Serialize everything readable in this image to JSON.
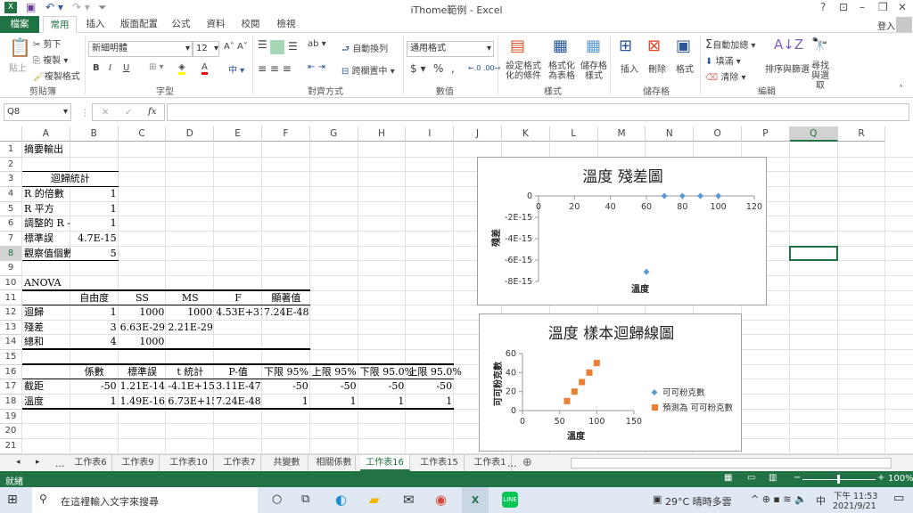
{
  "window": {
    "title": "iThome範例 - Excel",
    "help": "?",
    "signin": "登入"
  },
  "quick_access": {
    "save": "save-icon",
    "undo": "undo-icon",
    "redo": "redo-icon"
  },
  "tabs": [
    {
      "label": "檔案"
    },
    {
      "label": "常用",
      "active": true
    },
    {
      "label": "插入"
    },
    {
      "label": "版面配置"
    },
    {
      "label": "公式"
    },
    {
      "label": "資料"
    },
    {
      "label": "校閱"
    },
    {
      "label": "檢視"
    }
  ],
  "ribbon": {
    "clipboard": {
      "paste": "貼上",
      "cut": "剪下",
      "copy": "複製",
      "format_painter": "複製格式",
      "group": "剪貼簿"
    },
    "font": {
      "name": "新細明體",
      "size": "12",
      "bold": "B",
      "italic": "I",
      "underline": "U",
      "group": "字型"
    },
    "alignment": {
      "wrap": "自動換列",
      "merge": "跨欄置中",
      "group": "對齊方式"
    },
    "number": {
      "format": "通用格式",
      "currency": "$",
      "percent": "%",
      "comma": ",",
      "group": "數值"
    },
    "styles": {
      "conditional": "設定格式化的條件",
      "table": "格式化為表格",
      "cell": "儲存格樣式",
      "group": "樣式"
    },
    "cells": {
      "insert": "插入",
      "delete": "刪除",
      "format": "格式",
      "group": "儲存格"
    },
    "editing": {
      "autosum": "自動加總",
      "fill": "填滿",
      "clear": "清除",
      "sort": "排序與篩選",
      "find": "尋找與選取",
      "group": "編輯"
    }
  },
  "formula_bar": {
    "name_box": "Q8",
    "fx": "fx",
    "value": ""
  },
  "columns": [
    "A",
    "B",
    "C",
    "D",
    "E",
    "F",
    "G",
    "H",
    "I",
    "J",
    "K",
    "L",
    "M",
    "N",
    "O",
    "P",
    "Q",
    "R"
  ],
  "selected_cell": {
    "col": "Q",
    "row": 8
  },
  "sheet": {
    "cells": [
      [
        1,
        0,
        "摘要輸出",
        "l"
      ],
      [
        3,
        0,
        "迴歸統計",
        "span2"
      ],
      [
        4,
        0,
        "R 的倍數",
        "l"
      ],
      [
        4,
        1,
        "1",
        "r"
      ],
      [
        5,
        0,
        "R 平方",
        "l"
      ],
      [
        5,
        1,
        "1",
        "r"
      ],
      [
        6,
        0,
        "調整的 R -",
        "l"
      ],
      [
        6,
        1,
        "1",
        "r"
      ],
      [
        7,
        0,
        "標準誤",
        "l"
      ],
      [
        7,
        1,
        "4.7E-15",
        "r"
      ],
      [
        8,
        0,
        "觀察值個數",
        "l"
      ],
      [
        8,
        1,
        "5",
        "r"
      ],
      [
        10,
        0,
        "ANOVA",
        "l"
      ],
      [
        11,
        1,
        "自由度",
        "c"
      ],
      [
        11,
        2,
        "SS",
        "c"
      ],
      [
        11,
        3,
        "MS",
        "c"
      ],
      [
        11,
        4,
        "F",
        "c"
      ],
      [
        11,
        5,
        "顯著值",
        "c"
      ],
      [
        12,
        0,
        "迴歸",
        "l"
      ],
      [
        12,
        1,
        "1",
        "r"
      ],
      [
        12,
        2,
        "1000",
        "r"
      ],
      [
        12,
        3,
        "1000",
        "r"
      ],
      [
        12,
        4,
        "4.53E+31",
        "r"
      ],
      [
        12,
        5,
        "7.24E-48",
        "r"
      ],
      [
        13,
        0,
        "殘差",
        "l"
      ],
      [
        13,
        1,
        "3",
        "r"
      ],
      [
        13,
        2,
        "6.63E-29",
        "r"
      ],
      [
        13,
        3,
        "2.21E-29",
        "r"
      ],
      [
        14,
        0,
        "總和",
        "l"
      ],
      [
        14,
        1,
        "4",
        "r"
      ],
      [
        14,
        2,
        "1000",
        "r"
      ],
      [
        16,
        1,
        "係數",
        "c"
      ],
      [
        16,
        2,
        "標準誤",
        "c"
      ],
      [
        16,
        3,
        "t 統計",
        "c"
      ],
      [
        16,
        4,
        "P-值",
        "c"
      ],
      [
        16,
        5,
        "下限 95%",
        "c"
      ],
      [
        16,
        6,
        "上限 95%",
        "c"
      ],
      [
        16,
        7,
        "下限 95.0%",
        "c"
      ],
      [
        16,
        8,
        "上限 95.0%",
        "c"
      ],
      [
        17,
        0,
        "截距",
        "l"
      ],
      [
        17,
        1,
        "-50",
        "r"
      ],
      [
        17,
        2,
        "1.21E-14",
        "r"
      ],
      [
        17,
        3,
        "-4.1E+15",
        "r"
      ],
      [
        17,
        4,
        "3.11E-47",
        "r"
      ],
      [
        17,
        5,
        "-50",
        "r"
      ],
      [
        17,
        6,
        "-50",
        "r"
      ],
      [
        17,
        7,
        "-50",
        "r"
      ],
      [
        17,
        8,
        "-50",
        "r"
      ],
      [
        18,
        0,
        "溫度",
        "l"
      ],
      [
        18,
        1,
        "1",
        "r"
      ],
      [
        18,
        2,
        "1.49E-16",
        "r"
      ],
      [
        18,
        3,
        "6.73E+15",
        "r"
      ],
      [
        18,
        4,
        "7.24E-48",
        "r"
      ],
      [
        18,
        5,
        "1",
        "r"
      ],
      [
        18,
        6,
        "1",
        "r"
      ],
      [
        18,
        7,
        "1",
        "r"
      ],
      [
        18,
        8,
        "1",
        "r"
      ]
    ]
  },
  "chart_data": [
    {
      "type": "scatter",
      "title": "溫度 殘差圖",
      "xlabel": "溫度",
      "ylabel": "殘差",
      "xlim": [
        0,
        120
      ],
      "xticks": [
        "0",
        "20",
        "40",
        "60",
        "80",
        "100",
        "120"
      ],
      "ylim": [
        -8e-15,
        0
      ],
      "yticks": [
        "0",
        "-2E-15",
        "-4E-15",
        "-6E-15",
        "-8E-15"
      ],
      "series": [
        {
          "x": [
            60,
            70,
            80,
            90,
            100
          ],
          "y": [
            -7.1e-15,
            0,
            0,
            0,
            0
          ],
          "color": "#5b9bd5",
          "marker": "diamond"
        }
      ],
      "grid": false,
      "legend": "none"
    },
    {
      "type": "scatter",
      "title": "溫度 樣本迴歸線圖",
      "xlabel": "溫度",
      "ylabel": "可可粉克數",
      "xlim": [
        0,
        150
      ],
      "xticks": [
        "0",
        "50",
        "100",
        "150"
      ],
      "ylim": [
        0,
        60
      ],
      "yticks": [
        "60",
        "40",
        "20",
        "0"
      ],
      "series": [
        {
          "name": "可可粉克數",
          "x": [
            60,
            70,
            80,
            90,
            100
          ],
          "y": [
            10,
            20,
            30,
            40,
            50
          ],
          "color": "#5b9bd5",
          "marker": "diamond"
        },
        {
          "name": "預測為 可可粉克數",
          "x": [
            60,
            70,
            80,
            90,
            100
          ],
          "y": [
            10,
            20,
            30,
            40,
            50
          ],
          "color": "#ed7d31",
          "marker": "square"
        }
      ],
      "grid": false,
      "legend": "right"
    }
  ],
  "sheet_tabs": [
    {
      "label": "工作表6"
    },
    {
      "label": "工作表9"
    },
    {
      "label": "工作表10"
    },
    {
      "label": "工作表7"
    },
    {
      "label": "共變數"
    },
    {
      "label": "相關係數"
    },
    {
      "label": "工作表16",
      "active": true
    },
    {
      "label": "工作表15"
    },
    {
      "label": "工作表1"
    }
  ],
  "sheet_tabs_more": "...",
  "status": {
    "ready": "就緒",
    "zoom": "100%",
    "zoom_level": 100
  },
  "taskbar": {
    "search_placeholder": "在這裡輸入文字來搜尋",
    "weather": "29°C  晴時多雲",
    "ime": "中",
    "time": "下午 11:53",
    "date": "2021/9/21"
  }
}
